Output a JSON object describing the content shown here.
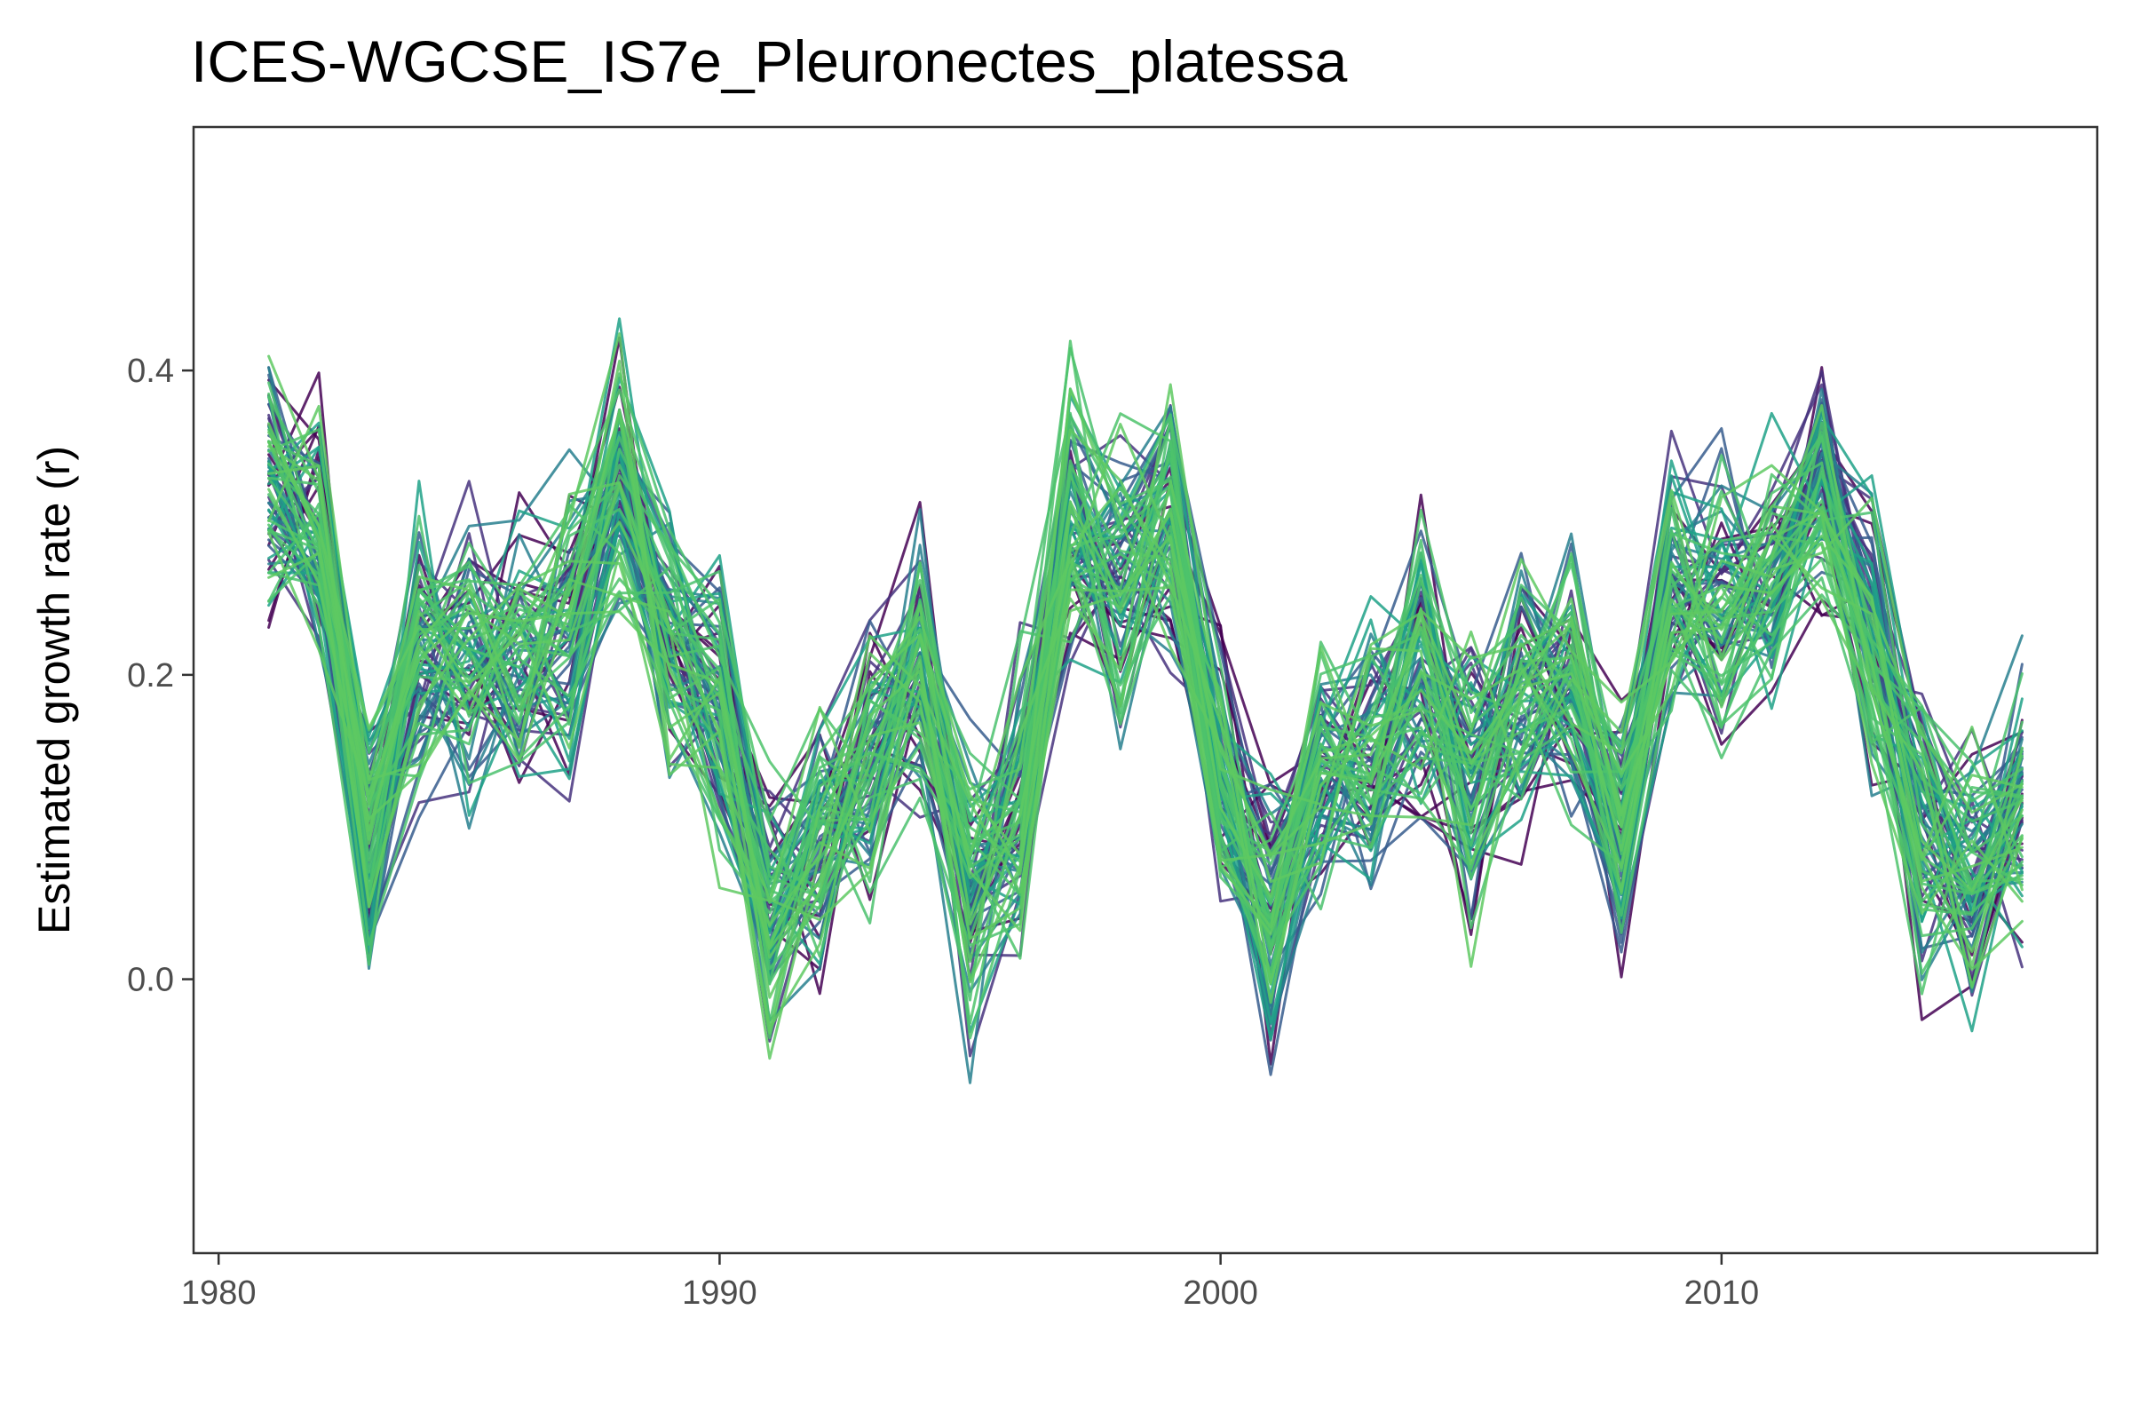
{
  "chart_data": {
    "type": "line",
    "title": "ICES-WGCSE_IS7e_Pleuronectes_platessa",
    "xlabel": "",
    "ylabel": "Estimated growth rate (r)",
    "xlim": [
      1979.5,
      2017.5
    ],
    "ylim": [
      -0.18,
      0.56
    ],
    "xticks": [
      1980,
      1990,
      2000,
      2010
    ],
    "yticks": [
      0.0,
      0.2,
      0.4
    ],
    "ytick_labels": [
      "0.0",
      "0.2",
      "0.4"
    ],
    "grid": false,
    "legend": "none",
    "x": [
      1981,
      1982,
      1983,
      1984,
      1985,
      1986,
      1987,
      1988,
      1989,
      1990,
      1991,
      1992,
      1993,
      1994,
      1995,
      1996,
      1997,
      1998,
      1999,
      2000,
      2001,
      2002,
      2003,
      2004,
      2005,
      2006,
      2007,
      2008,
      2009,
      2010,
      2011,
      2012,
      2013,
      2014,
      2015,
      2016
    ],
    "central_values": [
      0.33,
      0.3,
      0.09,
      0.21,
      0.21,
      0.22,
      0.23,
      0.33,
      0.23,
      0.18,
      0.04,
      0.08,
      0.14,
      0.2,
      0.05,
      0.11,
      0.3,
      0.26,
      0.31,
      0.14,
      0.04,
      0.13,
      0.15,
      0.2,
      0.13,
      0.19,
      0.19,
      0.1,
      0.26,
      0.25,
      0.27,
      0.33,
      0.23,
      0.1,
      0.07,
      0.12
    ],
    "series_count": 80,
    "colors": [
      "#440154",
      "#46327e",
      "#365c8d",
      "#277f8e",
      "#1fa187",
      "#4ac16d",
      "#4ec36b",
      "#5ec962"
    ],
    "axis_color": "#333333",
    "tick_label_color": "#4d4d4d"
  }
}
